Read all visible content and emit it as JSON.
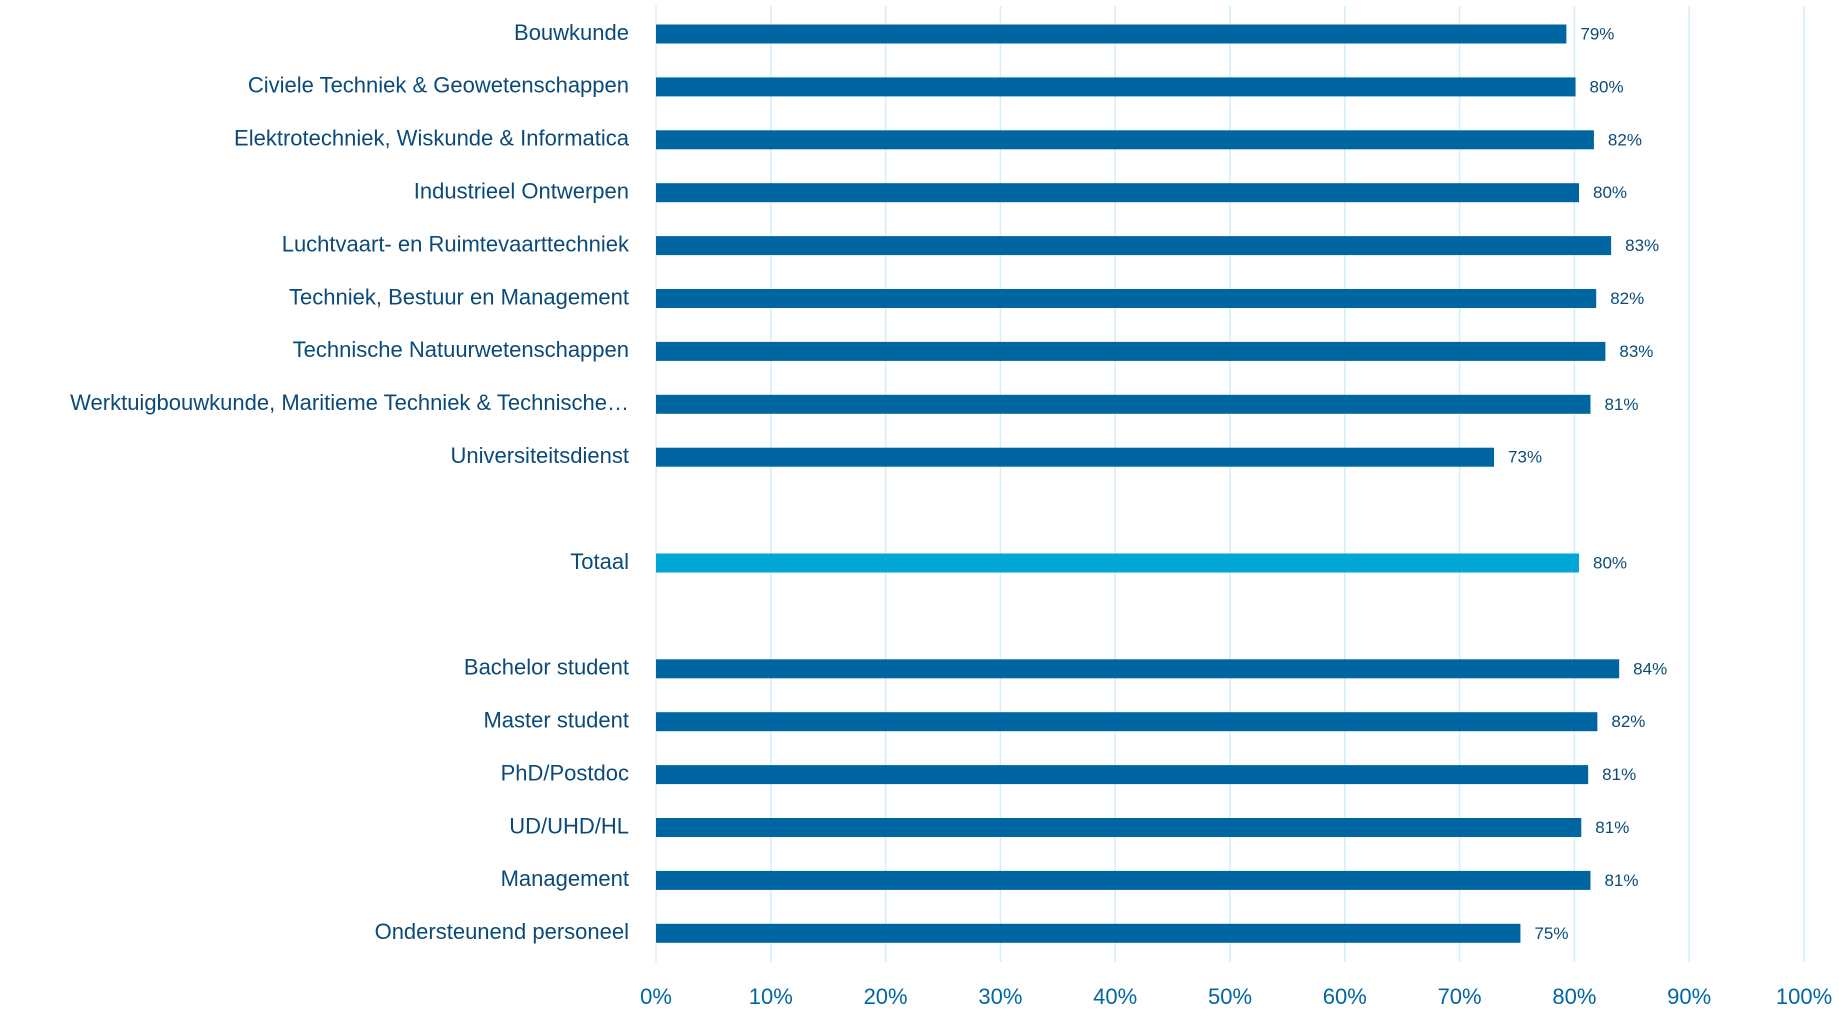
{
  "chart_data": {
    "type": "hbar",
    "categories": [
      "Bouwkunde",
      "Civiele Techniek & Geowetenschappen",
      "Elektrotechniek, Wiskunde & Informatica",
      "Industrieel Ontwerpen",
      "Luchtvaart- en Ruimtevaarttechniek",
      "Techniek, Bestuur en Management",
      "Technische Natuurwetenschappen",
      "Werktuigbouwkunde, Maritieme Techniek & Technische…",
      "Universiteitsdienst",
      null,
      "Totaal",
      null,
      "Bachelor student",
      "Master student",
      "PhD/Postdoc",
      "UD/UHD/HL",
      "Management",
      "Ondersteunend personeel"
    ],
    "values": [
      79.3,
      80.1,
      81.7,
      80.4,
      83.2,
      81.9,
      82.7,
      81.4,
      73.0,
      null,
      80.4,
      null,
      83.9,
      82.0,
      81.2,
      80.6,
      81.4,
      75.3
    ],
    "value_labels": [
      "79%",
      "80%",
      "82%",
      "80%",
      "83%",
      "82%",
      "83%",
      "81%",
      "73%",
      null,
      "80%",
      null,
      "84%",
      "82%",
      "81%",
      "81%",
      "81%",
      "75%"
    ],
    "colors": [
      "#0066a2",
      "#0066a2",
      "#0066a2",
      "#0066a2",
      "#0066a2",
      "#0066a2",
      "#0066a2",
      "#0066a2",
      "#0066a2",
      null,
      "#00a6d6",
      null,
      "#0066a2",
      "#0066a2",
      "#0066a2",
      "#0066a2",
      "#0066a2",
      "#0066a2"
    ],
    "xlim": [
      0,
      100
    ],
    "xticks": [
      {
        "value": 0,
        "label": "0%"
      },
      {
        "value": 10,
        "label": "10%"
      },
      {
        "value": 20,
        "label": "20%"
      },
      {
        "value": 30,
        "label": "30%"
      },
      {
        "value": 40,
        "label": "40%"
      },
      {
        "value": 50,
        "label": "50%"
      },
      {
        "value": 60,
        "label": "60%"
      },
      {
        "value": 70,
        "label": "70%"
      },
      {
        "value": 80,
        "label": "80%"
      },
      {
        "value": 90,
        "label": "90%"
      },
      {
        "value": 100,
        "label": "100%"
      }
    ],
    "grid": true
  }
}
